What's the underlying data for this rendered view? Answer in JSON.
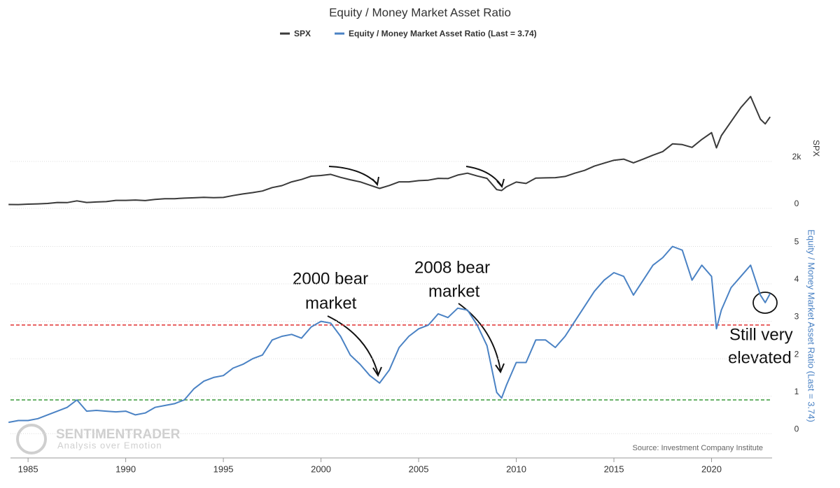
{
  "chart_data": [
    {
      "type": "line",
      "title": "Equity / Money Market Asset Ratio",
      "y_label": "SPX",
      "xlim": [
        1984.1,
        2023.1
      ],
      "ylim": [
        0,
        6350
      ],
      "yticks": [
        0,
        {
          "value": 2000,
          "label": "2k"
        }
      ],
      "grid": true,
      "x": [
        1984,
        1984.5,
        1985,
        1985.5,
        1986,
        1986.5,
        1987,
        1987.5,
        1988,
        1988.5,
        1989,
        1989.5,
        1990,
        1990.5,
        1991,
        1991.5,
        1992,
        1992.5,
        1993,
        1993.5,
        1994,
        1994.5,
        1995,
        1995.5,
        1996,
        1996.5,
        1997,
        1997.5,
        1998,
        1998.5,
        1999,
        1999.5,
        2000,
        2000.5,
        2001,
        2001.5,
        2002,
        2002.5,
        2003,
        2003.5,
        2004,
        2004.5,
        2005,
        2005.5,
        2006,
        2006.5,
        2007,
        2007.5,
        2008,
        2008.5,
        2009,
        2009.25,
        2009.5,
        2010,
        2010.5,
        2011,
        2011.5,
        2012,
        2012.5,
        2013,
        2013.5,
        2014,
        2014.5,
        2015,
        2015.5,
        2016,
        2016.5,
        2017,
        2017.5,
        2018,
        2018.5,
        2019,
        2019.5,
        2020,
        2020.25,
        2020.5,
        2021,
        2021.5,
        2022,
        2022.5,
        2022.75,
        2023
      ],
      "series": [
        {
          "name": "SPX",
          "color": "#3a3a3a",
          "values": [
            165,
            160,
            180,
            190,
            210,
            250,
            245,
            320,
            250,
            270,
            285,
            340,
            340,
            355,
            330,
            380,
            410,
            410,
            435,
            450,
            470,
            455,
            465,
            545,
            615,
            670,
            740,
            885,
            970,
            1130,
            1230,
            1370,
            1400,
            1450,
            1320,
            1220,
            1130,
            990,
            850,
            975,
            1130,
            1130,
            1180,
            1200,
            1280,
            1270,
            1420,
            1500,
            1380,
            1280,
            800,
            760,
            920,
            1120,
            1060,
            1290,
            1300,
            1310,
            1360,
            1500,
            1620,
            1800,
            1930,
            2050,
            2100,
            1940,
            2100,
            2270,
            2420,
            2750,
            2720,
            2600,
            2940,
            3230,
            2580,
            3100,
            3700,
            4300,
            4770,
            3800,
            3600,
            3900
          ]
        }
      ]
    },
    {
      "type": "line",
      "y_label": "Equity / Money Market Asset Ratio (Last = 3.74)",
      "xlim": [
        1984.1,
        2023.1
      ],
      "ylim": [
        -0.65,
        5.7
      ],
      "yticks": [
        0,
        1,
        2,
        3,
        4,
        5
      ],
      "xticks": [
        1985,
        1990,
        1995,
        2000,
        2005,
        2010,
        2015,
        2020
      ],
      "grid": true,
      "x": [
        1984,
        1984.5,
        1985,
        1985.5,
        1986,
        1986.5,
        1987,
        1987.5,
        1988,
        1988.5,
        1989,
        1989.5,
        1990,
        1990.5,
        1991,
        1991.5,
        1992,
        1992.5,
        1993,
        1993.5,
        1994,
        1994.5,
        1995,
        1995.5,
        1996,
        1996.5,
        1997,
        1997.5,
        1998,
        1998.5,
        1999,
        1999.5,
        2000,
        2000.5,
        2001,
        2001.5,
        2002,
        2002.5,
        2003,
        2003.5,
        2004,
        2004.5,
        2005,
        2005.5,
        2006,
        2006.5,
        2007,
        2007.5,
        2008,
        2008.5,
        2009,
        2009.25,
        2009.5,
        2010,
        2010.5,
        2011,
        2011.5,
        2012,
        2012.5,
        2013,
        2013.5,
        2014,
        2014.5,
        2015,
        2015.5,
        2016,
        2016.5,
        2017,
        2017.5,
        2018,
        2018.5,
        2019,
        2019.5,
        2020,
        2020.25,
        2020.5,
        2021,
        2021.5,
        2022,
        2022.5,
        2022.75,
        2023
      ],
      "series": [
        {
          "name": "Equity / Money Market Asset Ratio (Last = 3.74)",
          "color": "#4a82c4",
          "values": [
            0.3,
            0.35,
            0.35,
            0.4,
            0.5,
            0.6,
            0.7,
            0.9,
            0.6,
            0.62,
            0.6,
            0.58,
            0.6,
            0.5,
            0.55,
            0.7,
            0.75,
            0.8,
            0.9,
            1.2,
            1.4,
            1.5,
            1.55,
            1.75,
            1.85,
            2.0,
            2.1,
            2.5,
            2.6,
            2.65,
            2.55,
            2.85,
            3.0,
            2.95,
            2.6,
            2.1,
            1.85,
            1.55,
            1.35,
            1.7,
            2.3,
            2.6,
            2.8,
            2.9,
            3.2,
            3.1,
            3.35,
            3.3,
            2.9,
            2.35,
            1.1,
            0.95,
            1.3,
            1.9,
            1.9,
            2.5,
            2.5,
            2.3,
            2.6,
            3.0,
            3.4,
            3.8,
            4.1,
            4.3,
            4.2,
            3.7,
            4.1,
            4.5,
            4.7,
            5.0,
            4.9,
            4.1,
            4.5,
            4.2,
            2.8,
            3.3,
            3.9,
            4.2,
            4.5,
            3.7,
            3.5,
            3.74
          ]
        }
      ],
      "reference_lines": [
        {
          "value": 2.9,
          "color": "#e03030"
        },
        {
          "value": 0.9,
          "color": "#3a9a3a"
        }
      ],
      "annotations": [
        {
          "lines": [
            "2000 bear",
            "market"
          ]
        },
        {
          "lines": [
            "2008 bear",
            "market"
          ]
        },
        {
          "lines": [
            "Still very",
            "elevated"
          ]
        }
      ],
      "source": "Source: Investment Company Institute",
      "watermark": [
        "SENTIMENTRADER",
        "Analysis over Emotion"
      ]
    }
  ]
}
